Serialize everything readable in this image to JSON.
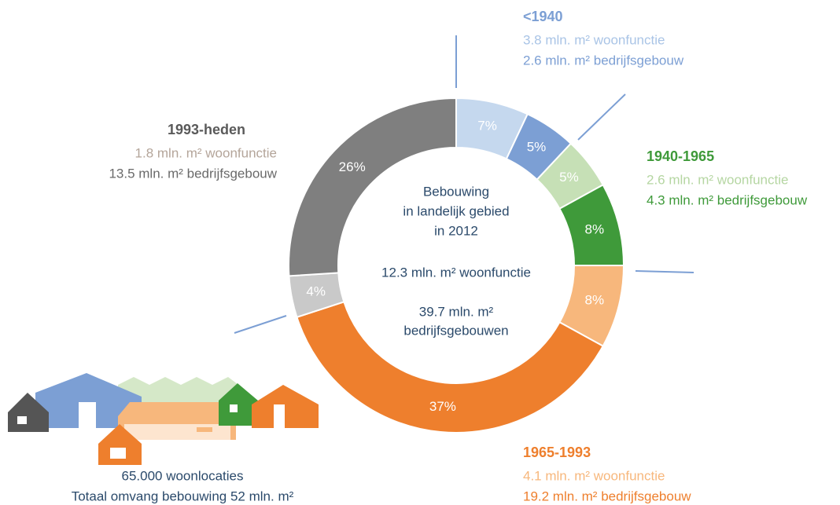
{
  "chart_data": {
    "type": "donut",
    "values": [
      7,
      5,
      5,
      8,
      8,
      37,
      4,
      26
    ],
    "value_labels": [
      "7%",
      "5%",
      "5%",
      "8%",
      "8%",
      "37%",
      "4%",
      "26%"
    ],
    "colors": [
      "#c5d8ee",
      "#7c9fd4",
      "#c6e0b6",
      "#3f9a3a",
      "#f7b77c",
      "#ee7f2d",
      "#c9c9c9",
      "#7f7f7f"
    ],
    "center_text": [
      "Bebouwing",
      "in landelijk gebied",
      "in 2012",
      "12.3 mln. m² woonfunctie",
      "39.7 mln. m²",
      "bedrijfsgebouwen"
    ],
    "groups": [
      {
        "title": "<1940",
        "color": "#7c9fd4",
        "lines": [
          {
            "text": "3.8 mln. m² woonfunctie",
            "color": "#a9c4e6"
          },
          {
            "text": "2.6 mln. m² bedrijfsgebouw",
            "color": "#7c9fd4"
          }
        ]
      },
      {
        "title": "1940-1965",
        "color": "#3f9a3a",
        "lines": [
          {
            "text": "2.6 mln. m² woonfunctie",
            "color": "#b5d6a2"
          },
          {
            "text": "4.3 mln. m² bedrijfsgebouw",
            "color": "#3f9a3a"
          }
        ]
      },
      {
        "title": "1965-1993",
        "color": "#ee7f2d",
        "lines": [
          {
            "text": "4.1 mln. m² woonfunctie",
            "color": "#f7b77c"
          },
          {
            "text": "19.2 mln. m² bedrijfsgebouw",
            "color": "#ee7f2d"
          }
        ]
      },
      {
        "title": "1993-heden",
        "color": "#5a5a5a",
        "lines": [
          {
            "text": "1.8 mln. m² woonfunctie",
            "color": "#b4a59a"
          },
          {
            "text": "13.5 mln. m² bedrijfsgebouw",
            "color": "#6a6a6a"
          }
        ]
      }
    ],
    "footer": [
      "65.000 woonlocaties",
      "Totaal omvang bebouwing 52 mln. m²"
    ]
  }
}
